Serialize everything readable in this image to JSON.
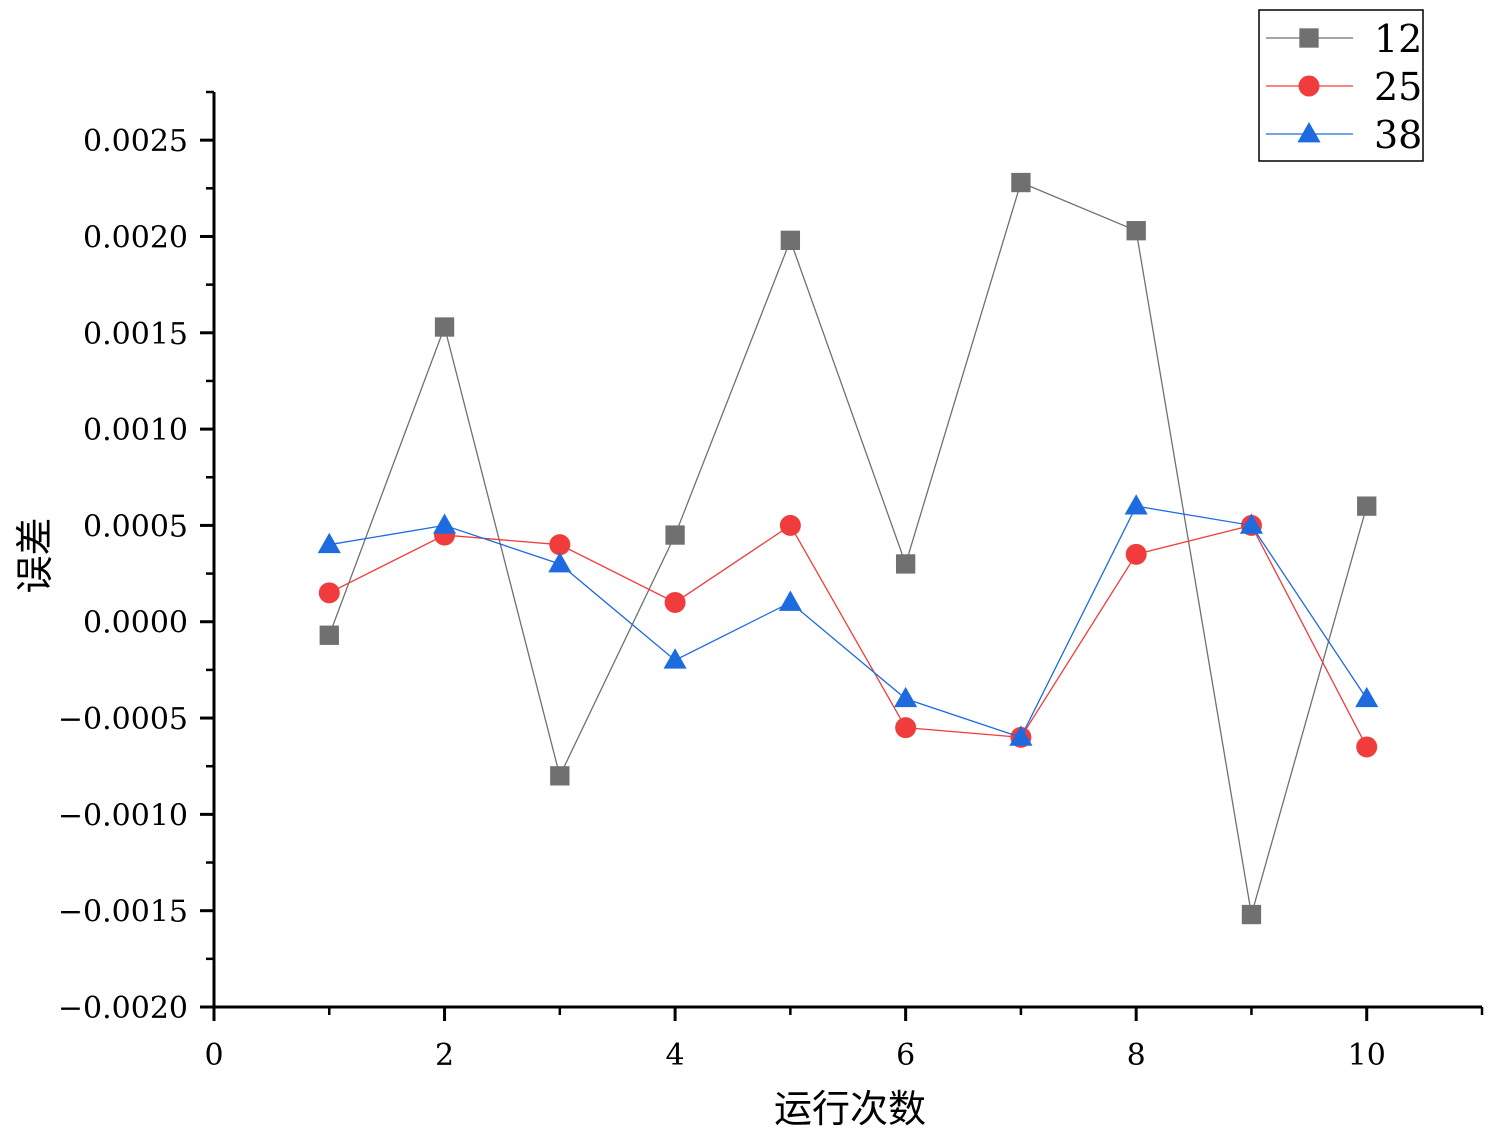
{
  "chart_data": {
    "type": "line",
    "title": "",
    "xlabel": "运行次数",
    "ylabel": "误差",
    "xlim": [
      0,
      11
    ],
    "ylim": [
      -0.002,
      0.00275
    ],
    "x_ticks": [
      {
        "value": 0,
        "label": "0"
      },
      {
        "value": 2,
        "label": "2"
      },
      {
        "value": 4,
        "label": "4"
      },
      {
        "value": 6,
        "label": "6"
      },
      {
        "value": 8,
        "label": "8"
      },
      {
        "value": 10,
        "label": "10"
      }
    ],
    "x_minor_ticks": [
      1,
      3,
      5,
      7,
      9,
      11
    ],
    "y_ticks": [
      {
        "value": 0.0025,
        "label": "0.0025"
      },
      {
        "value": 0.002,
        "label": "0.0020"
      },
      {
        "value": 0.0015,
        "label": "0.0015"
      },
      {
        "value": 0.001,
        "label": "0.0010"
      },
      {
        "value": 0.0005,
        "label": "0.0005"
      },
      {
        "value": 0.0,
        "label": "0.0000"
      },
      {
        "value": -0.0005,
        "label": "−0.0005"
      },
      {
        "value": -0.001,
        "label": "−0.0010"
      },
      {
        "value": -0.0015,
        "label": "−0.0015"
      },
      {
        "value": -0.002,
        "label": "−0.0020"
      }
    ],
    "y_minor_ticks": [
      0.00275,
      0.00225,
      0.00175,
      0.00125,
      0.00075,
      0.00025,
      -0.00025,
      -0.00075,
      -0.00125,
      -0.00175
    ],
    "grid": false,
    "legend_position": "top-right",
    "x": [
      1,
      2,
      3,
      4,
      5,
      6,
      7,
      8,
      9,
      10
    ],
    "series": [
      {
        "name": "12",
        "marker": "square",
        "color": "#707070",
        "values": [
          -7e-05,
          0.00153,
          -0.0008,
          0.00045,
          0.00198,
          0.0003,
          0.00228,
          0.00203,
          -0.00152,
          0.0006
        ]
      },
      {
        "name": "25",
        "marker": "circle",
        "color": "#f03c3c",
        "values": [
          0.00015,
          0.00045,
          0.0004,
          0.0001,
          0.0005,
          -0.00055,
          -0.0006,
          0.00035,
          0.0005,
          -0.00065
        ]
      },
      {
        "name": "38",
        "marker": "triangle",
        "color": "#1e6be0",
        "values": [
          0.0004,
          0.0005,
          0.0003,
          -0.0002,
          0.0001,
          -0.0004,
          -0.0006,
          0.0006,
          0.0005,
          -0.0004
        ]
      }
    ]
  }
}
